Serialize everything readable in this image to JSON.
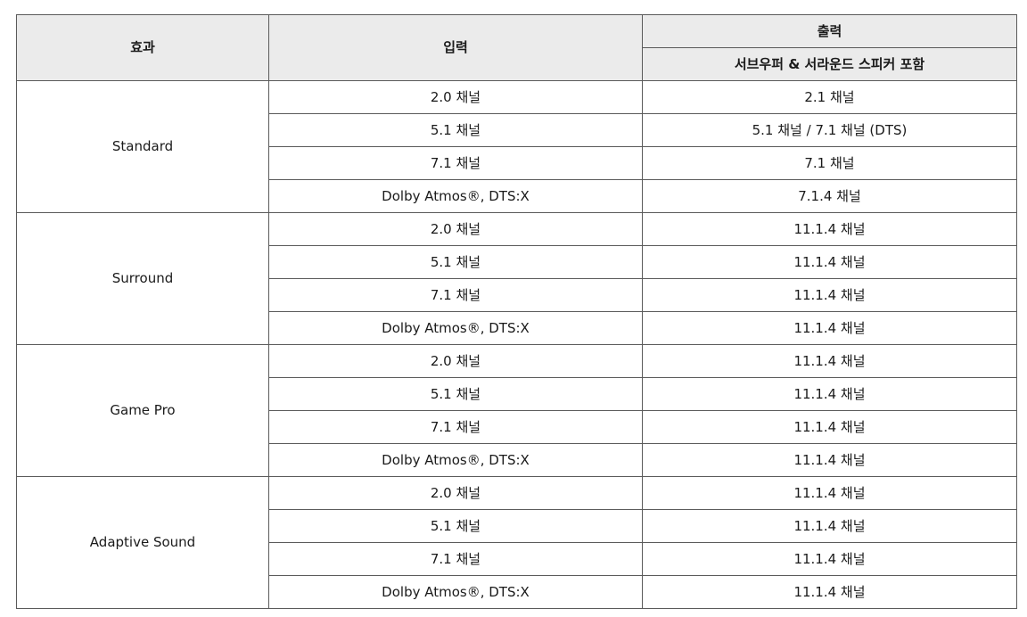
{
  "header": {
    "effect": "효과",
    "input": "입력",
    "output": "출력",
    "output_sub": "서브우퍼 & 서라운드 스피커 포함"
  },
  "groups": [
    {
      "effect": "Standard",
      "rows": [
        {
          "input": "2.0 채널",
          "output": "2.1 채널"
        },
        {
          "input": "5.1 채널",
          "output": "5.1 채널 / 7.1 채널 (DTS)"
        },
        {
          "input": "7.1 채널",
          "output": "7.1 채널"
        },
        {
          "input": "Dolby Atmos®, DTS:X",
          "output": "7.1.4 채널"
        }
      ]
    },
    {
      "effect": "Surround",
      "rows": [
        {
          "input": "2.0 채널",
          "output": "11.1.4 채널"
        },
        {
          "input": "5.1 채널",
          "output": "11.1.4 채널"
        },
        {
          "input": "7.1 채널",
          "output": "11.1.4 채널"
        },
        {
          "input": "Dolby Atmos®, DTS:X",
          "output": "11.1.4 채널"
        }
      ]
    },
    {
      "effect": "Game Pro",
      "rows": [
        {
          "input": "2.0 채널",
          "output": "11.1.4 채널"
        },
        {
          "input": "5.1 채널",
          "output": "11.1.4 채널"
        },
        {
          "input": "7.1 채널",
          "output": "11.1.4 채널"
        },
        {
          "input": "Dolby Atmos®, DTS:X",
          "output": "11.1.4 채널"
        }
      ]
    },
    {
      "effect": "Adaptive Sound",
      "rows": [
        {
          "input": "2.0 채널",
          "output": "11.1.4 채널"
        },
        {
          "input": "5.1 채널",
          "output": "11.1.4 채널"
        },
        {
          "input": "7.1 채널",
          "output": "11.1.4 채널"
        },
        {
          "input": "Dolby Atmos®, DTS:X",
          "output": "11.1.4 채널"
        }
      ]
    }
  ]
}
